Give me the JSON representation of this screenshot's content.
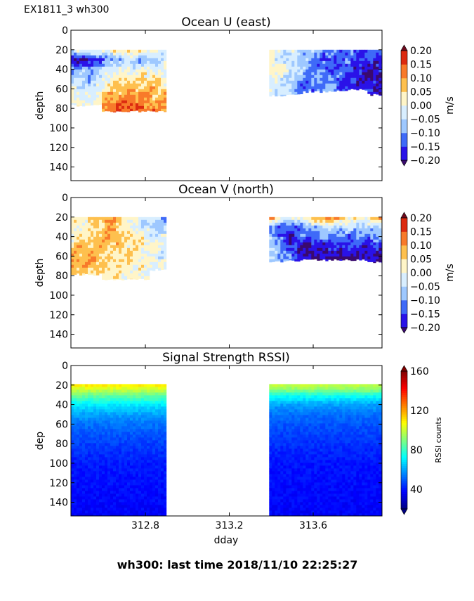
{
  "figure": {
    "suptitle": "EX1811_3 wh300",
    "footer": "wh300: last time 2018/11/10 22:25:27"
  },
  "chart_data": [
    {
      "type": "heatmap",
      "style": "filled-contour",
      "title": "Ocean U (east)",
      "xlabel": "",
      "ylabel": "depth",
      "xlim": [
        312.445,
        313.928
      ],
      "ylim": [
        154,
        0
      ],
      "y_inverted": true,
      "xticks": [
        312.8,
        313.2,
        313.6
      ],
      "xtick_labels_shown": false,
      "yticks": [
        0,
        20,
        40,
        60,
        80,
        100,
        120,
        140
      ],
      "colorbar": {
        "label": "m/s",
        "levels": [
          -0.2,
          -0.15,
          -0.1,
          -0.05,
          0.0,
          0.05,
          0.1,
          0.15,
          0.2
        ],
        "tick_labels": [
          "−0.20",
          "−0.15",
          "−0.10",
          "−0.05",
          "0.00",
          "0.05",
          "0.10",
          "0.15",
          "0.20"
        ],
        "extend": "both",
        "colors": [
          "#2a12e8",
          "#3f6af8",
          "#9ec8ff",
          "#d8eeff",
          "#fff5c8",
          "#fec04e",
          "#f87a2a",
          "#dc2a10"
        ],
        "under_color": "#3a0a6e",
        "over_color": "#6e0a1e"
      },
      "blocks": [
        {
          "x_range": [
            312.445,
            312.9
          ],
          "depths": [
            20,
            30,
            40,
            50,
            60,
            70,
            80
          ],
          "bottom_depth": [
            77,
            77,
            83,
            83,
            83,
            83
          ],
          "values": [
            [
              0.0,
              0.0,
              0.02,
              0.06,
              0.05,
              -0.02
            ],
            [
              -0.21,
              -0.2,
              -0.12,
              -0.05,
              -0.1,
              -0.03
            ],
            [
              -0.1,
              -0.1,
              -0.03,
              0.0,
              0.0,
              -0.02
            ],
            [
              -0.05,
              -0.07,
              0.02,
              0.04,
              0.05,
              0.0
            ],
            [
              0.0,
              -0.05,
              0.05,
              0.07,
              0.08,
              0.05
            ],
            [
              0.02,
              -0.02,
              0.1,
              0.12,
              0.1,
              0.08
            ],
            [
              0.02,
              0.0,
              0.13,
              0.15,
              0.12,
              0.1
            ]
          ]
        },
        {
          "x_range": [
            313.39,
            313.928
          ],
          "depths": [
            20,
            30,
            40,
            50,
            60
          ],
          "bottom_depth": [
            67,
            65,
            63,
            63,
            62,
            61,
            66
          ],
          "values": [
            [
              0.02,
              -0.03,
              -0.05,
              -0.1,
              -0.12,
              -0.15,
              -0.1
            ],
            [
              0.0,
              -0.05,
              -0.08,
              -0.15,
              -0.12,
              -0.17,
              -0.15
            ],
            [
              0.05,
              0.0,
              -0.1,
              -0.12,
              -0.15,
              -0.2,
              -0.18
            ],
            [
              0.0,
              -0.05,
              -0.12,
              -0.1,
              -0.15,
              -0.2,
              -0.2
            ],
            [
              -0.03,
              -0.05,
              -0.15,
              -0.08,
              -0.18,
              -0.17,
              -0.18
            ]
          ]
        }
      ]
    },
    {
      "type": "heatmap",
      "style": "filled-contour",
      "title": "Ocean V (north)",
      "xlabel": "",
      "ylabel": "depth",
      "xlim": [
        312.445,
        313.928
      ],
      "ylim": [
        154,
        0
      ],
      "y_inverted": true,
      "xticks": [
        312.8,
        313.2,
        313.6
      ],
      "xtick_labels_shown": false,
      "yticks": [
        0,
        20,
        40,
        60,
        80,
        100,
        120,
        140
      ],
      "colorbar": {
        "label": "m/s",
        "levels": [
          -0.2,
          -0.15,
          -0.1,
          -0.05,
          0.0,
          0.05,
          0.1,
          0.15,
          0.2
        ],
        "tick_labels": [
          "−0.20",
          "−0.15",
          "−0.10",
          "−0.05",
          "0.00",
          "0.05",
          "0.10",
          "0.15",
          "0.20"
        ],
        "extend": "both",
        "colors": [
          "#2a12e8",
          "#3f6af8",
          "#9ec8ff",
          "#d8eeff",
          "#fff5c8",
          "#fec04e",
          "#f87a2a",
          "#dc2a10"
        ],
        "under_color": "#3a0a6e",
        "over_color": "#6e0a1e"
      },
      "blocks": [
        {
          "x_range": [
            312.445,
            312.9
          ],
          "depths": [
            20,
            30,
            40,
            50,
            60,
            70,
            80
          ],
          "bottom_depth": [
            79,
            79,
            84,
            84,
            84,
            74
          ],
          "values": [
            [
              0.0,
              0.05,
              0.1,
              0.03,
              -0.05,
              -0.1
            ],
            [
              0.0,
              0.03,
              0.09,
              0.02,
              -0.05,
              -0.05
            ],
            [
              0.02,
              0.05,
              0.1,
              0.05,
              0.0,
              -0.03
            ],
            [
              0.05,
              0.08,
              0.06,
              0.04,
              0.02,
              0.0
            ],
            [
              0.08,
              0.11,
              0.05,
              0.06,
              0.0,
              -0.02
            ],
            [
              0.1,
              0.08,
              0.05,
              0.03,
              0.0,
              -0.03
            ],
            [
              0.05,
              0.05,
              0.03,
              0.02,
              0.0,
              0.0
            ]
          ]
        },
        {
          "x_range": [
            313.39,
            313.928
          ],
          "depths": [
            20,
            30,
            40,
            50,
            60
          ],
          "bottom_depth": [
            66,
            65,
            64,
            64,
            64,
            64,
            66
          ],
          "values": [
            [
              0.15,
              -0.05,
              0.05,
              0.16,
              0.05,
              0.0,
              0.16
            ],
            [
              -0.1,
              -0.15,
              -0.1,
              -0.05,
              -0.05,
              -0.05,
              -0.05
            ],
            [
              -0.05,
              -0.2,
              -0.12,
              -0.1,
              -0.12,
              -0.1,
              -0.1
            ],
            [
              -0.05,
              -0.15,
              -0.21,
              -0.18,
              -0.15,
              -0.18,
              -0.15
            ],
            [
              -0.05,
              -0.12,
              -0.21,
              -0.2,
              -0.21,
              -0.2,
              -0.18
            ]
          ]
        }
      ]
    },
    {
      "type": "heatmap",
      "style": "pcolor",
      "title": "Signal Strength RSSI)",
      "xlabel": "dday",
      "ylabel": "dep",
      "xlim": [
        312.445,
        313.928
      ],
      "ylim": [
        154,
        0
      ],
      "y_inverted": true,
      "xticks": [
        312.8,
        313.2,
        313.6
      ],
      "xtick_labels": [
        "312.8",
        "313.2",
        "313.6"
      ],
      "yticks": [
        0,
        20,
        40,
        60,
        80,
        100,
        120,
        140
      ],
      "colorbar": {
        "label": "RSSI counts",
        "colormap": "jet",
        "range": [
          20,
          160
        ],
        "ticks": [
          40,
          80,
          120,
          160
        ],
        "tick_labels": [
          "40",
          "80",
          "120",
          "160"
        ],
        "extend": "both"
      },
      "blocks": [
        {
          "x_range": [
            312.445,
            312.9
          ],
          "depth_range": [
            19,
            155
          ],
          "profile_depths": [
            19,
            25,
            30,
            40,
            50,
            60,
            80,
            100,
            155
          ],
          "profile_values": [
            112,
            100,
            88,
            70,
            60,
            53,
            46,
            41,
            37
          ]
        },
        {
          "x_range": [
            313.39,
            313.928
          ],
          "depth_range": [
            19,
            155
          ],
          "profile_depths": [
            19,
            25,
            30,
            40,
            50,
            60,
            80,
            100,
            155
          ],
          "profile_values": [
            100,
            92,
            76,
            60,
            53,
            49,
            44,
            40,
            37
          ]
        }
      ]
    }
  ]
}
